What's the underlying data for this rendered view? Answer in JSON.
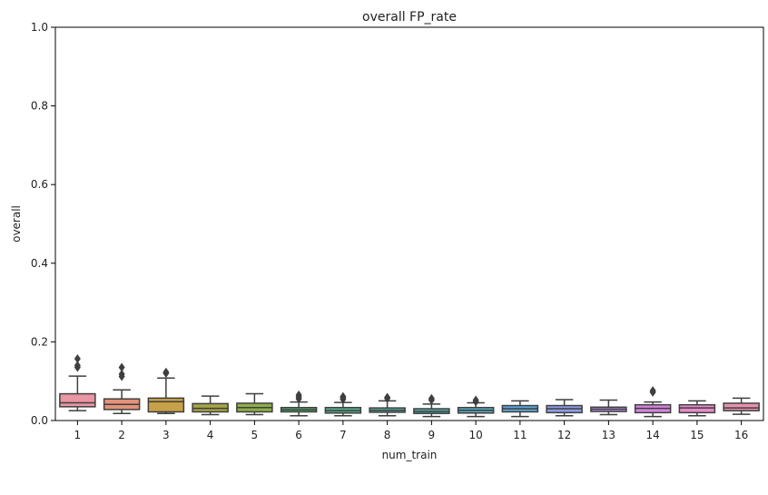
{
  "chart_data": {
    "type": "box",
    "title": "overall FP_rate",
    "xlabel": "num_train",
    "ylabel": "overall",
    "ylim": [
      0,
      1
    ],
    "yticks": [
      "0.0",
      "0.2",
      "0.4",
      "0.6",
      "0.8",
      "1.0"
    ],
    "categories": [
      "1",
      "2",
      "3",
      "4",
      "5",
      "6",
      "7",
      "8",
      "9",
      "10",
      "11",
      "12",
      "13",
      "14",
      "15",
      "16"
    ],
    "grid": false,
    "legend": "none",
    "boxes": [
      {
        "whisker_low": 0.025,
        "q1": 0.035,
        "median": 0.045,
        "q3": 0.068,
        "whisker_high": 0.113,
        "outliers": [
          0.135,
          0.14,
          0.157
        ]
      },
      {
        "whisker_low": 0.018,
        "q1": 0.028,
        "median": 0.041,
        "q3": 0.055,
        "whisker_high": 0.078,
        "outliers": [
          0.112,
          0.118,
          0.135
        ]
      },
      {
        "whisker_low": 0.018,
        "q1": 0.022,
        "median": 0.048,
        "q3": 0.057,
        "whisker_high": 0.108,
        "outliers": [
          0.12,
          0.123
        ]
      },
      {
        "whisker_low": 0.015,
        "q1": 0.022,
        "median": 0.031,
        "q3": 0.043,
        "whisker_high": 0.062,
        "outliers": []
      },
      {
        "whisker_low": 0.015,
        "q1": 0.022,
        "median": 0.033,
        "q3": 0.044,
        "whisker_high": 0.068,
        "outliers": []
      },
      {
        "whisker_low": 0.012,
        "q1": 0.022,
        "median": 0.027,
        "q3": 0.033,
        "whisker_high": 0.047,
        "outliers": [
          0.055,
          0.06,
          0.065
        ]
      },
      {
        "whisker_low": 0.012,
        "q1": 0.019,
        "median": 0.025,
        "q3": 0.033,
        "whisker_high": 0.046,
        "outliers": [
          0.054,
          0.058,
          0.061
        ]
      },
      {
        "whisker_low": 0.012,
        "q1": 0.021,
        "median": 0.026,
        "q3": 0.032,
        "whisker_high": 0.05,
        "outliers": [
          0.056,
          0.059
        ]
      },
      {
        "whisker_low": 0.01,
        "q1": 0.018,
        "median": 0.023,
        "q3": 0.03,
        "whisker_high": 0.042,
        "outliers": [
          0.052,
          0.056
        ]
      },
      {
        "whisker_low": 0.01,
        "q1": 0.019,
        "median": 0.026,
        "q3": 0.033,
        "whisker_high": 0.045,
        "outliers": [
          0.048,
          0.052
        ]
      },
      {
        "whisker_low": 0.01,
        "q1": 0.022,
        "median": 0.03,
        "q3": 0.038,
        "whisker_high": 0.05,
        "outliers": []
      },
      {
        "whisker_low": 0.012,
        "q1": 0.02,
        "median": 0.03,
        "q3": 0.038,
        "whisker_high": 0.053,
        "outliers": []
      },
      {
        "whisker_low": 0.015,
        "q1": 0.023,
        "median": 0.029,
        "q3": 0.034,
        "whisker_high": 0.052,
        "outliers": []
      },
      {
        "whisker_low": 0.01,
        "q1": 0.02,
        "median": 0.031,
        "q3": 0.04,
        "whisker_high": 0.047,
        "outliers": [
          0.072,
          0.076
        ]
      },
      {
        "whisker_low": 0.012,
        "q1": 0.02,
        "median": 0.032,
        "q3": 0.04,
        "whisker_high": 0.05,
        "outliers": []
      },
      {
        "whisker_low": 0.016,
        "q1": 0.025,
        "median": 0.032,
        "q3": 0.044,
        "whisker_high": 0.057,
        "outliers": []
      }
    ],
    "colors": [
      "#ea96a3",
      "#e2927a",
      "#c7a147",
      "#a6a544",
      "#8dae49",
      "#50b269",
      "#55ae8d",
      "#56ac9f",
      "#58aaaf",
      "#5aa9c1",
      "#5ea6d9",
      "#8d9ce6",
      "#b391e3",
      "#d785e0",
      "#e68bc9",
      "#e791ae"
    ],
    "element_color": "#3f3f3f"
  }
}
